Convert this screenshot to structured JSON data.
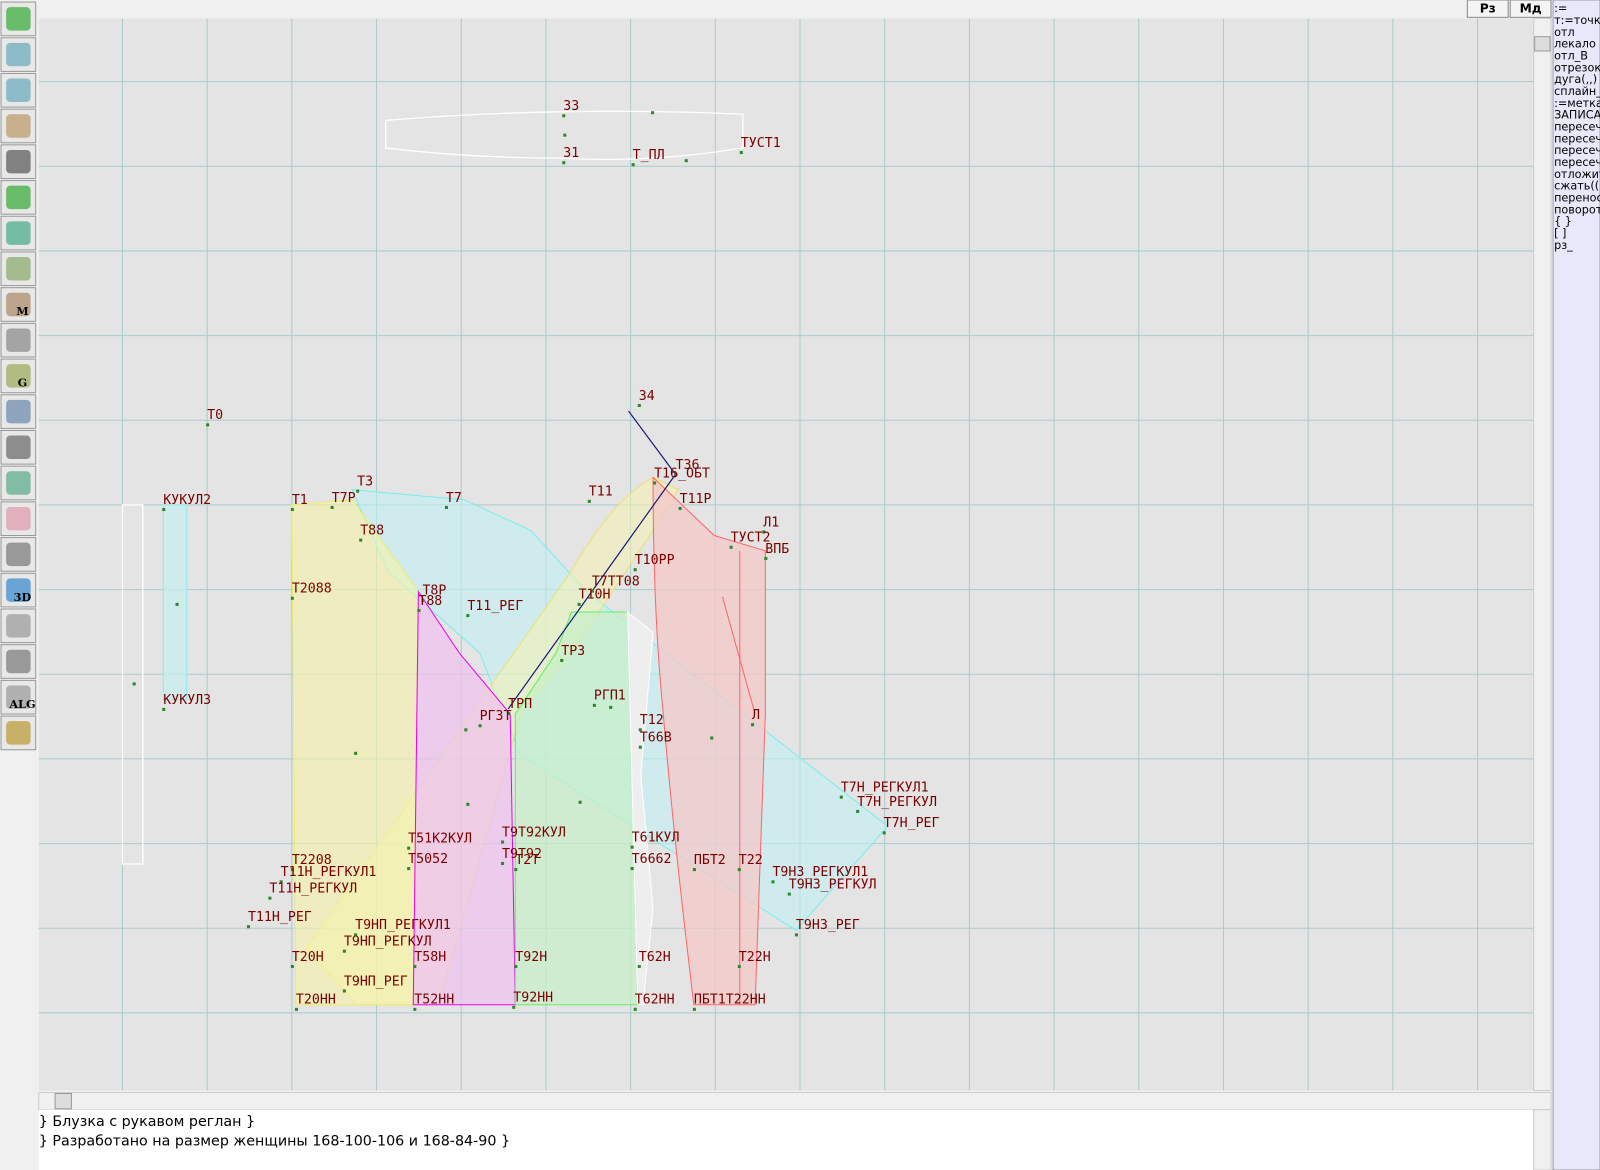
{
  "toolbar": {
    "icon_texts": [
      "M",
      "G",
      "3D",
      "ALG"
    ]
  },
  "top_buttons": [
    "Рз",
    "Мд"
  ],
  "canvas": {
    "labels": [
      "З3",
      "З1",
      "Т_ПЛ",
      "ТУСТ1",
      "З4",
      "Т0",
      "КУКУЛ2",
      "Т1",
      "Т7Р",
      "Т3",
      "Т7",
      "Т11",
      "Т36",
      "Т16_ОБТ",
      "Т11Р",
      "Л1",
      "ТУСТ2",
      "ВПБ",
      "Т88",
      "Т10РР",
      "Т2088",
      "Т8Р",
      "Т88",
      "Т11_РЕГ",
      "Т7ТТ08",
      "Т10Н",
      "ТР3",
      "КУКУЛ3",
      "РГП1",
      "ТРП",
      "РГ3Т",
      "Л",
      "Т12",
      "Т66В",
      "Т7Н_РЕГКУЛ1",
      "Т7Н_РЕГКУЛ",
      "Т7Н_РЕГ",
      "Т9Т92КУЛ",
      "Т51К2КУЛ",
      "Т61КУЛ",
      "Т5052",
      "Т9Т92",
      "Т2Т",
      "Т6662",
      "ПБТ2",
      "Т22",
      "Т2208",
      "Т11Н_РЕГКУЛ1",
      "Т9НЗ_РЕГКУЛ1",
      "Т11Н_РЕГКУЛ",
      "Т9НЗ_РЕГКУЛ",
      "Т11Н_РЕГ",
      "Т9НП_РЕГКУЛ1",
      "Т9НЗ_РЕГ",
      "Т9НП_РЕГКУЛ",
      "Т20Н",
      "Т58Н",
      "Т92Н",
      "Т62Н",
      "Т22Н",
      "Т9НП_РЕГ",
      "Т20НН",
      "Т52НН",
      "Т92НН",
      "Т62НН",
      "ПБТ1Т22НН"
    ]
  },
  "command_panel": {
    "lines": [
      ":=",
      "т:=точка",
      "отл",
      "лекало",
      "отл_В",
      "отрезок",
      "дуга(,,)",
      "сплайн_",
      ":=метка",
      "ЗАПИСА",
      "пересеч",
      "пересеч",
      "пересеч",
      "пересеч",
      "отложит",
      "сжать(()",
      "перенос",
      "поворот",
      "{ }",
      "[ ]",
      "рз_"
    ]
  },
  "comment": {
    "lines": [
      "} Блузка с рукавом реглан  }",
      "} Разработано на размер женщины 168-100-106 и 168-84-90 }"
    ]
  }
}
